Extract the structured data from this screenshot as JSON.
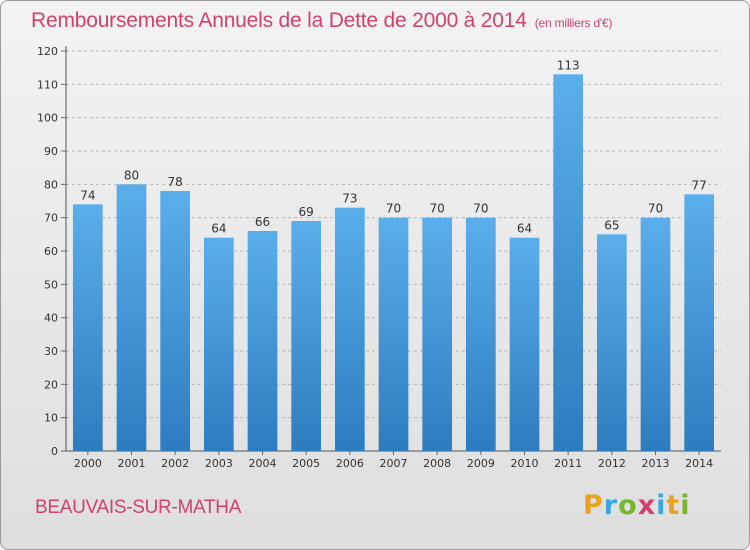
{
  "header": {
    "title": "Remboursements Annuels de la Dette de 2000 à 2014",
    "unit": "(en milliers d'€)"
  },
  "footer": {
    "commune": "BEAUVAIS-SUR-MATHA",
    "logo_letters": [
      "P",
      "r",
      "o",
      "x",
      "i",
      "t",
      "i"
    ],
    "logo_colors": [
      "#e8a21e",
      "#39a8e0",
      "#7ab52b",
      "#d2416c",
      "#39a8e0",
      "#e8a21e",
      "#7ab52b"
    ]
  },
  "chart_data": {
    "type": "bar",
    "title": "Remboursements Annuels de la Dette de 2000 à 2014",
    "categories": [
      "2000",
      "2001",
      "2002",
      "2003",
      "2004",
      "2005",
      "2006",
      "2007",
      "2008",
      "2009",
      "2010",
      "2011",
      "2012",
      "2013",
      "2014"
    ],
    "values": [
      74,
      80,
      78,
      64,
      66,
      69,
      73,
      70,
      70,
      70,
      64,
      113,
      65,
      70,
      77
    ],
    "ylim": [
      0,
      120
    ],
    "yticks": [
      0,
      10,
      20,
      30,
      40,
      50,
      60,
      70,
      80,
      90,
      100,
      110,
      120
    ],
    "grid": true,
    "bar_color_top": "#5aaeea",
    "bar_color_bottom": "#2d7cc0",
    "grid_color": "#b8b8b8",
    "text_color": "#333333"
  }
}
